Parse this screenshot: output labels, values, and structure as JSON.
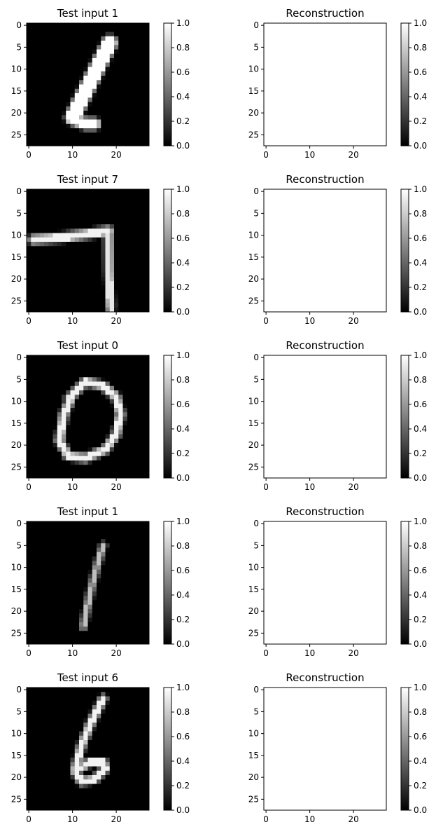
{
  "chart_data": [
    {
      "type": "heatmap",
      "title": "Test input 1",
      "digit": "1",
      "shape": [
        28,
        28
      ],
      "xticks": [
        0,
        10,
        20
      ],
      "yticks": [
        0,
        5,
        10,
        15,
        20,
        25
      ],
      "colormap": "gray",
      "colorbar": {
        "min": 0.0,
        "max": 1.0,
        "ticks": [
          "0.0",
          "0.2",
          "0.4",
          "0.6",
          "0.8",
          "1.0"
        ]
      },
      "strokes": [
        {
          "points": [
            [
              18.5,
              4
            ],
            [
              10,
              21
            ]
          ],
          "width": 2.8,
          "intensity": 1.0
        },
        {
          "points": [
            [
              10.2,
              21.5
            ],
            [
              13,
              22.5
            ],
            [
              15,
              22.5
            ]
          ],
          "width": 2.0,
          "intensity": 1.0
        }
      ]
    },
    {
      "type": "heatmap",
      "title": "Reconstruction",
      "shape": [
        28,
        28
      ],
      "uniform_value": 1.0,
      "xticks": [
        0,
        10,
        20
      ],
      "yticks": [
        0,
        5,
        10,
        15,
        20,
        25
      ],
      "colormap": "gray",
      "colorbar": {
        "min": 0.0,
        "max": 1.0,
        "ticks": [
          "0.0",
          "0.2",
          "0.4",
          "0.6",
          "0.8",
          "1.0"
        ]
      }
    },
    {
      "type": "heatmap",
      "title": "Test input 7",
      "digit": "7",
      "shape": [
        28,
        28
      ],
      "xticks": [
        0,
        10,
        20
      ],
      "yticks": [
        0,
        5,
        10,
        15,
        20,
        25
      ],
      "colormap": "gray",
      "colorbar": {
        "min": 0.0,
        "max": 1.0,
        "ticks": [
          "0.0",
          "0.2",
          "0.4",
          "0.6",
          "0.8",
          "1.0"
        ]
      },
      "strokes": [
        {
          "points": [
            [
              1,
              11
            ],
            [
              8,
              10.5
            ],
            [
              17,
              9.2
            ],
            [
              18.2,
              9
            ]
          ],
          "width": 1.4,
          "intensity": 0.95
        },
        {
          "points": [
            [
              18.2,
              9.5
            ],
            [
              18.3,
              18
            ],
            [
              18.7,
              26.5
            ]
          ],
          "width": 1.2,
          "intensity": 0.9
        }
      ]
    },
    {
      "type": "heatmap",
      "title": "Reconstruction",
      "shape": [
        28,
        28
      ],
      "uniform_value": 1.0,
      "xticks": [
        0,
        10,
        20
      ],
      "yticks": [
        0,
        5,
        10,
        15,
        20,
        25
      ],
      "colormap": "gray",
      "colorbar": {
        "min": 0.0,
        "max": 1.0,
        "ticks": [
          "0.0",
          "0.2",
          "0.4",
          "0.6",
          "0.8",
          "1.0"
        ]
      }
    },
    {
      "type": "heatmap",
      "title": "Test input 0",
      "digit": "0",
      "shape": [
        28,
        28
      ],
      "xticks": [
        0,
        10,
        20
      ],
      "yticks": [
        0,
        5,
        10,
        15,
        20,
        25
      ],
      "colormap": "gray",
      "colorbar": {
        "min": 0.0,
        "max": 1.0,
        "ticks": [
          "0.0",
          "0.2",
          "0.4",
          "0.6",
          "0.8",
          "1.0"
        ]
      },
      "strokes": [
        {
          "points": [
            [
              13,
              5.5
            ],
            [
              17,
              6.5
            ],
            [
              20,
              9
            ],
            [
              21,
              13
            ],
            [
              20,
              17.5
            ],
            [
              17.5,
              21
            ],
            [
              13,
              23
            ],
            [
              9,
              22.5
            ],
            [
              7,
              19
            ],
            [
              8,
              13
            ],
            [
              10,
              8.5
            ],
            [
              13,
              5.5
            ]
          ],
          "width": 1.2,
          "intensity": 0.95
        },
        {
          "points": [
            [
              10,
              8.5
            ],
            [
              9,
              9.5
            ]
          ],
          "width": 1.0,
          "intensity": 0.9
        }
      ]
    },
    {
      "type": "heatmap",
      "title": "Reconstruction",
      "shape": [
        28,
        28
      ],
      "uniform_value": 1.0,
      "xticks": [
        0,
        10,
        20
      ],
      "yticks": [
        0,
        5,
        10,
        15,
        20,
        25
      ],
      "colormap": "gray",
      "colorbar": {
        "min": 0.0,
        "max": 1.0,
        "ticks": [
          "0.0",
          "0.2",
          "0.4",
          "0.6",
          "0.8",
          "1.0"
        ]
      }
    },
    {
      "type": "heatmap",
      "title": "Test input 1",
      "digit": "1",
      "shape": [
        28,
        28
      ],
      "xticks": [
        0,
        10,
        20
      ],
      "yticks": [
        0,
        5,
        10,
        15,
        20,
        25
      ],
      "colormap": "gray",
      "colorbar": {
        "min": 0.0,
        "max": 1.0,
        "ticks": [
          "0.0",
          "0.2",
          "0.4",
          "0.6",
          "0.8",
          "1.0"
        ]
      },
      "strokes": [
        {
          "points": [
            [
              17,
              5
            ],
            [
              15.5,
              10
            ],
            [
              14,
              16
            ],
            [
              12.5,
              23.5
            ]
          ],
          "width": 0.8,
          "intensity": 0.75
        }
      ]
    },
    {
      "type": "heatmap",
      "title": "Reconstruction",
      "shape": [
        28,
        28
      ],
      "uniform_value": 1.0,
      "xticks": [
        0,
        10,
        20
      ],
      "yticks": [
        0,
        5,
        10,
        15,
        20,
        25
      ],
      "colormap": "gray",
      "colorbar": {
        "min": 0.0,
        "max": 1.0,
        "ticks": [
          "0.0",
          "0.2",
          "0.4",
          "0.6",
          "0.8",
          "1.0"
        ]
      }
    },
    {
      "type": "heatmap",
      "title": "Test input 6",
      "digit": "6",
      "shape": [
        28,
        28
      ],
      "xticks": [
        0,
        10,
        20
      ],
      "yticks": [
        0,
        5,
        10,
        15,
        20,
        25
      ],
      "colormap": "gray",
      "colorbar": {
        "min": 0.0,
        "max": 1.0,
        "ticks": [
          "0.0",
          "0.2",
          "0.4",
          "0.6",
          "0.8",
          "1.0"
        ]
      },
      "strokes": [
        {
          "points": [
            [
              17,
              2
            ],
            [
              14,
              8
            ],
            [
              12,
              13
            ],
            [
              10.5,
              18.5
            ],
            [
              12,
              21
            ],
            [
              15,
              20.5
            ],
            [
              17.5,
              18
            ],
            [
              17,
              16.5
            ],
            [
              14,
              16.5
            ],
            [
              11,
              18.5
            ]
          ],
          "width": 1.1,
          "intensity": 0.95
        }
      ]
    },
    {
      "type": "heatmap",
      "title": "Reconstruction",
      "shape": [
        28,
        28
      ],
      "uniform_value": 1.0,
      "xticks": [
        0,
        10,
        20
      ],
      "yticks": [
        0,
        5,
        10,
        15,
        20,
        25
      ],
      "colormap": "gray",
      "colorbar": {
        "min": 0.0,
        "max": 1.0,
        "ticks": [
          "0.0",
          "0.2",
          "0.4",
          "0.6",
          "0.8",
          "1.0"
        ]
      }
    }
  ]
}
